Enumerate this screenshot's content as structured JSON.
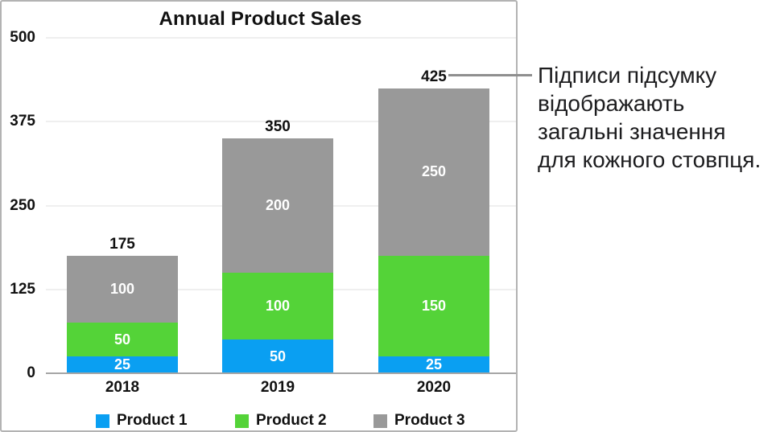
{
  "chart_data": {
    "type": "bar",
    "variant": "stacked-column",
    "title": "Annual Product Sales",
    "categories": [
      "2018",
      "2019",
      "2020"
    ],
    "series": [
      {
        "name": "Product 1",
        "color": "#0a9ff2",
        "values": [
          25,
          50,
          25
        ]
      },
      {
        "name": "Product 2",
        "color": "#54d338",
        "values": [
          50,
          100,
          150
        ]
      },
      {
        "name": "Product 3",
        "color": "#999999",
        "values": [
          100,
          200,
          250
        ]
      }
    ],
    "totals": [
      175,
      350,
      425
    ],
    "total_labels": [
      "175",
      "350",
      "425"
    ],
    "segment_labels": [
      [
        "25",
        "50",
        "100"
      ],
      [
        "50",
        "100",
        "200"
      ],
      [
        "25",
        "150",
        "250"
      ]
    ],
    "yticks": [
      0,
      125,
      250,
      375,
      500
    ],
    "ylim": [
      0,
      500
    ],
    "xlabel": "",
    "ylabel": "",
    "grid": true,
    "legend_position": "bottom"
  },
  "annotation": {
    "lines": {
      "0": "Підписи підсумку",
      "1": "відображають",
      "2": "загальні значення",
      "3": "для кожного стовпця."
    },
    "full_text": "Підписи підсумку відображають загальні значення для кожного стовпця."
  },
  "colors": {
    "panel_border": "#b3b3b3",
    "gridline": "#efefef",
    "axis_line": "#a6a6a6",
    "callout_line": "#8f8f8f",
    "text": "#111111",
    "segment_label_text": "#ffffff"
  }
}
